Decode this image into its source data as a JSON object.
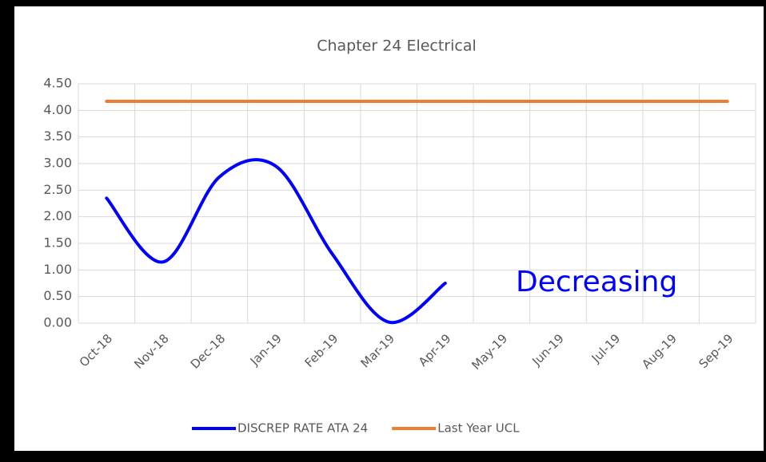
{
  "chart_data": {
    "type": "line",
    "title": "Chapter 24 Electrical",
    "categories": [
      "Oct-18",
      "Nov-18",
      "Dec-18",
      "Jan-19",
      "Feb-19",
      "Mar-19",
      "Apr-19",
      "May-19",
      "Jun-19",
      "Jul-19",
      "Aug-19",
      "Sep-19"
    ],
    "series": [
      {
        "name": "DISCREP RATE ATA 24",
        "color": "#0000ff",
        "values": [
          2.35,
          1.15,
          2.75,
          2.95,
          1.3,
          0.02,
          0.75,
          null,
          null,
          null,
          null,
          null
        ]
      },
      {
        "name": "Last Year UCL",
        "color": "#ed7d31",
        "values": [
          4.17,
          4.17,
          4.17,
          4.17,
          4.17,
          4.17,
          4.17,
          4.17,
          4.17,
          4.17,
          4.17,
          4.17
        ]
      }
    ],
    "ylim": [
      0,
      4.5
    ],
    "yticks": [
      {
        "value": 0,
        "label": "0.00"
      },
      {
        "value": 0.5,
        "label": "0.50"
      },
      {
        "value": 1,
        "label": "1.00"
      },
      {
        "value": 1.5,
        "label": "1.50"
      },
      {
        "value": 2,
        "label": "2.00"
      },
      {
        "value": 2.5,
        "label": "2.50"
      },
      {
        "value": 3,
        "label": "3.00"
      },
      {
        "value": 3.5,
        "label": "3.50"
      },
      {
        "value": 4,
        "label": "4.00"
      },
      {
        "value": 4.5,
        "label": "4.50"
      }
    ],
    "grid": true,
    "smooth": true,
    "legend": "bottom",
    "annotation": "Decreasing",
    "annotation_color": "#0000ff"
  }
}
